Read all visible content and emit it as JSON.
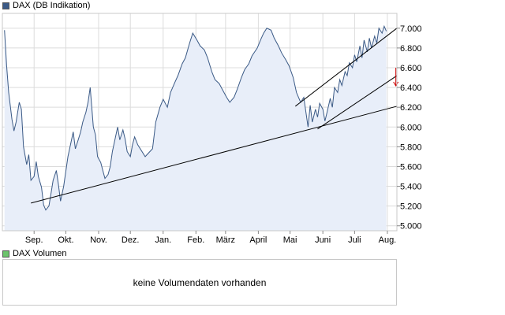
{
  "chart_data": {
    "type": "area",
    "series": [
      {
        "name": "DAX (DB Indikation)",
        "color": "#3b5a86",
        "fill": "#e8eef9",
        "dates": [
          "2008-08-18",
          "2008-08-20",
          "2008-08-22",
          "2008-08-25",
          "2008-08-27",
          "2008-08-29",
          "2008-09-01",
          "2008-09-03",
          "2008-09-05",
          "2008-09-08",
          "2008-09-10",
          "2008-09-12",
          "2008-09-15",
          "2008-09-17",
          "2008-09-19",
          "2008-09-22",
          "2008-09-24",
          "2008-09-26",
          "2008-09-29",
          "2008-10-01",
          "2008-10-03",
          "2008-10-06",
          "2008-10-08",
          "2008-10-10",
          "2008-10-13",
          "2008-10-15",
          "2008-10-17",
          "2008-10-20",
          "2008-10-22",
          "2008-10-24",
          "2008-10-27",
          "2008-10-29",
          "2008-10-31",
          "2008-11-03",
          "2008-11-05",
          "2008-11-07",
          "2008-11-10",
          "2008-11-12",
          "2008-11-14",
          "2008-11-17",
          "2008-11-19",
          "2008-11-21",
          "2008-11-24",
          "2008-11-26",
          "2008-11-28",
          "2008-12-01",
          "2008-12-03",
          "2008-12-05",
          "2008-12-08",
          "2008-12-10",
          "2008-12-12",
          "2008-12-15",
          "2008-12-17",
          "2008-12-19",
          "2008-12-22",
          "2008-12-29",
          "2009-01-05",
          "2009-01-08",
          "2009-01-12",
          "2009-01-15",
          "2009-01-19",
          "2009-01-22",
          "2009-01-26",
          "2009-01-29",
          "2009-02-02",
          "2009-02-05",
          "2009-02-09",
          "2009-02-12",
          "2009-02-16",
          "2009-02-19",
          "2009-02-23",
          "2009-02-26",
          "2009-03-02",
          "2009-03-05",
          "2009-03-09",
          "2009-03-12",
          "2009-03-16",
          "2009-03-19",
          "2009-03-23",
          "2009-03-26",
          "2009-03-30",
          "2009-04-02",
          "2009-04-06",
          "2009-04-09",
          "2009-04-14",
          "2009-04-17",
          "2009-04-20",
          "2009-04-23",
          "2009-04-27",
          "2009-04-30",
          "2009-05-04",
          "2009-05-07",
          "2009-05-11",
          "2009-05-14",
          "2009-05-18",
          "2009-05-21",
          "2009-05-25",
          "2009-05-28",
          "2009-06-01",
          "2009-06-03",
          "2009-06-05",
          "2009-06-08",
          "2009-06-10",
          "2009-06-12",
          "2009-06-15",
          "2009-06-17",
          "2009-06-19",
          "2009-06-22",
          "2009-06-24",
          "2009-06-26",
          "2009-06-29",
          "2009-07-01",
          "2009-07-03",
          "2009-07-06",
          "2009-07-08",
          "2009-07-10",
          "2009-07-13",
          "2009-07-15",
          "2009-07-17",
          "2009-07-20",
          "2009-07-22",
          "2009-07-24",
          "2009-07-27",
          "2009-07-29",
          "2009-07-31",
          "2009-08-03",
          "2009-08-05",
          "2009-08-07",
          "2009-08-10",
          "2009-08-12",
          "2009-08-14"
        ],
        "values": [
          6980,
          6620,
          6350,
          6080,
          5960,
          6050,
          6250,
          6180,
          5800,
          5620,
          5720,
          5460,
          5500,
          5650,
          5500,
          5390,
          5210,
          5160,
          5200,
          5330,
          5460,
          5560,
          5420,
          5250,
          5400,
          5550,
          5700,
          5850,
          5950,
          5780,
          5880,
          5950,
          6050,
          6150,
          6250,
          6400,
          6000,
          5920,
          5700,
          5640,
          5560,
          5480,
          5520,
          5600,
          5750,
          5900,
          6000,
          5870,
          5970,
          5880,
          5750,
          5700,
          5820,
          5900,
          5820,
          5700,
          5780,
          6050,
          6200,
          6280,
          6200,
          6350,
          6450,
          6520,
          6640,
          6700,
          6850,
          6950,
          6880,
          6820,
          6780,
          6700,
          6560,
          6480,
          6440,
          6380,
          6300,
          6250,
          6300,
          6380,
          6500,
          6580,
          6640,
          6720,
          6800,
          6880,
          6950,
          7000,
          6980,
          6900,
          6820,
          6750,
          6680,
          6620,
          6500,
          6350,
          6250,
          6300,
          6000,
          6220,
          6050,
          6180,
          6100,
          6240,
          6180,
          6060,
          6150,
          6290,
          6200,
          6400,
          6350,
          6480,
          6420,
          6560,
          6520,
          6650,
          6600,
          6730,
          6660,
          6820,
          6700,
          6880,
          6760,
          6900,
          6800,
          6920,
          6850,
          7000,
          6950,
          7020,
          6970
        ]
      }
    ],
    "yticks": [
      5000,
      5200,
      5400,
      5600,
      5800,
      6000,
      6200,
      6400,
      6600,
      6800,
      7000
    ],
    "yticklabels": [
      "5.000",
      "5.200",
      "5.400",
      "5.600",
      "5.800",
      "6.000",
      "6.200",
      "6.400",
      "6.600",
      "6.800",
      "7.000"
    ],
    "ylim": [
      4950,
      7150
    ],
    "xlim": [
      "2008-08-16",
      "2009-08-24"
    ],
    "xticks": [
      {
        "label": "Sep.",
        "date": "2008-09-15"
      },
      {
        "label": "Okt.",
        "date": "2008-10-15"
      },
      {
        "label": "Nov.",
        "date": "2008-11-15"
      },
      {
        "label": "Dez.",
        "date": "2008-12-15"
      },
      {
        "label": "Jan.",
        "date": "2009-01-15"
      },
      {
        "label": "Feb.",
        "date": "2009-02-15"
      },
      {
        "label": "März",
        "date": "2009-03-15"
      },
      {
        "label": "April",
        "date": "2009-04-15"
      },
      {
        "label": "Mai",
        "date": "2009-05-15"
      },
      {
        "label": "Juni",
        "date": "2009-06-15"
      },
      {
        "label": "Juli",
        "date": "2009-07-15"
      },
      {
        "label": "Aug.",
        "date": "2009-08-15"
      }
    ],
    "grid": true,
    "legend": "top-left",
    "trendlines": [
      {
        "from": {
          "date": "2008-09-12",
          "value": 5230
        },
        "to": {
          "date": "2009-08-24",
          "value": 6210
        }
      },
      {
        "from": {
          "date": "2009-05-20",
          "value": 6210
        },
        "to": {
          "date": "2009-08-24",
          "value": 7000
        }
      },
      {
        "from": {
          "date": "2009-06-10",
          "value": 5980
        },
        "to": {
          "date": "2009-08-24",
          "value": 6520
        }
      }
    ],
    "annotations": [
      {
        "type": "arrow-down",
        "date": "2009-08-23",
        "value": 6600,
        "color": "#cc0000"
      }
    ]
  },
  "legend_main": {
    "label": "DAX (DB Indikation)",
    "color": "#3b5a86"
  },
  "legend_volume": {
    "label": "DAX Volumen",
    "color": "#6cc46c"
  },
  "volume_panel": {
    "message": "keine Volumendaten vorhanden"
  }
}
